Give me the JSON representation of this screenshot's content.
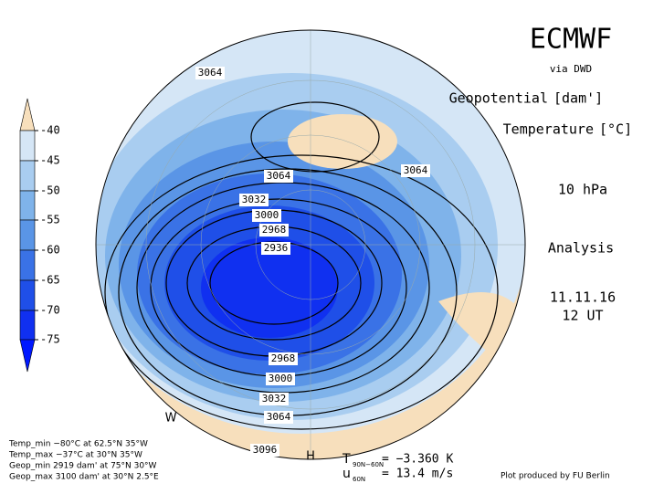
{
  "header": {
    "title": "ECMWF",
    "source": "via DWD",
    "field1": "Geopotential",
    "unit1": "[dam']",
    "field2": "Temperature",
    "unit2": "[°C]",
    "level": "10 hPa",
    "kind": "Analysis",
    "date": "11.11.16",
    "time": "12 UT"
  },
  "colorbar": {
    "labels": [
      "-40",
      "-45",
      "-50",
      "-55",
      "-60",
      "-65",
      "-70",
      "-75"
    ]
  },
  "contour_labels": [
    "3064",
    "3064",
    "3064",
    "3032",
    "3000",
    "2968",
    "2936",
    "2968",
    "3000",
    "3032",
    "3064",
    "3096"
  ],
  "map_marks": [
    "W",
    "H"
  ],
  "stats": [
    "Temp_min −80°C at 62.5°N 35°W",
    "Temp_max −37°C at 30°N 35°W",
    "Geop_min 2919 dam' at 75°N 30°W",
    "Geop_max 3100 dam' at 30°N 2.5°E"
  ],
  "diagnostics": {
    "t_symbol": "T",
    "t_sub": "90N−60N",
    "t_value": "= −3.360 K",
    "u_symbol": "u",
    "u_sub": "60N",
    "u_value": "= 13.4 m/s"
  },
  "credit": "Plot produced by FU Berlin"
}
